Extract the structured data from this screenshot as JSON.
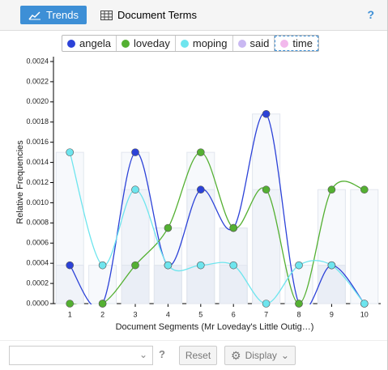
{
  "ui": {
    "tabs": [
      "Trends",
      "Document Terms"
    ],
    "active_tab": "Trends",
    "help": "?",
    "reset": "Reset",
    "display": "Display"
  },
  "chart_data": {
    "type": "line",
    "categories": [
      "1",
      "2",
      "3",
      "4",
      "5",
      "6",
      "7",
      "8",
      "9",
      "10"
    ],
    "series": [
      {
        "name": "angela",
        "color": "#2c42d8",
        "values": [
          0.00038,
          0,
          0.0015,
          0.00038,
          0.00113,
          0.00075,
          0.00188,
          0,
          0.00038,
          0
        ]
      },
      {
        "name": "loveday",
        "color": "#54b032",
        "values": [
          0,
          0,
          0.00038,
          0.00075,
          0.0015,
          0.00075,
          0.00113,
          0,
          0.00113,
          0.00113
        ]
      },
      {
        "name": "moping",
        "color": "#6ee5ee",
        "values": [
          0.0015,
          0.00038,
          0.00113,
          0.00038,
          0.00038,
          0.00038,
          0,
          0.00038,
          0.00038,
          0
        ]
      },
      {
        "name": "said",
        "color": "#c9b8f2"
      },
      {
        "name": "time",
        "color": "#f2b8ec"
      }
    ],
    "legend_selected": "time",
    "ylabel": "Relative Frequencies",
    "xlabel": "Document Segments (Mr Loveday's Little Outig…)",
    "ylim": [
      0,
      0.0024
    ],
    "yticks": [
      {
        "value": 0,
        "label": "0.0000"
      },
      {
        "value": 0.0002,
        "label": "0.0002"
      },
      {
        "value": 0.0004,
        "label": "0.0004"
      },
      {
        "value": 0.0006,
        "label": "0.0006"
      },
      {
        "value": 0.0008,
        "label": "0.0008"
      },
      {
        "value": 0.001,
        "label": "0.0010"
      },
      {
        "value": 0.0012,
        "label": "0.0012"
      },
      {
        "value": 0.0014,
        "label": "0.0014"
      },
      {
        "value": 0.0016,
        "label": "0.0016"
      },
      {
        "value": 0.0018,
        "label": "0.0018"
      },
      {
        "value": 0.002,
        "label": "0.0020"
      },
      {
        "value": 0.0022,
        "label": "0.0022"
      },
      {
        "value": 0.0024,
        "label": "0.0024"
      }
    ]
  }
}
